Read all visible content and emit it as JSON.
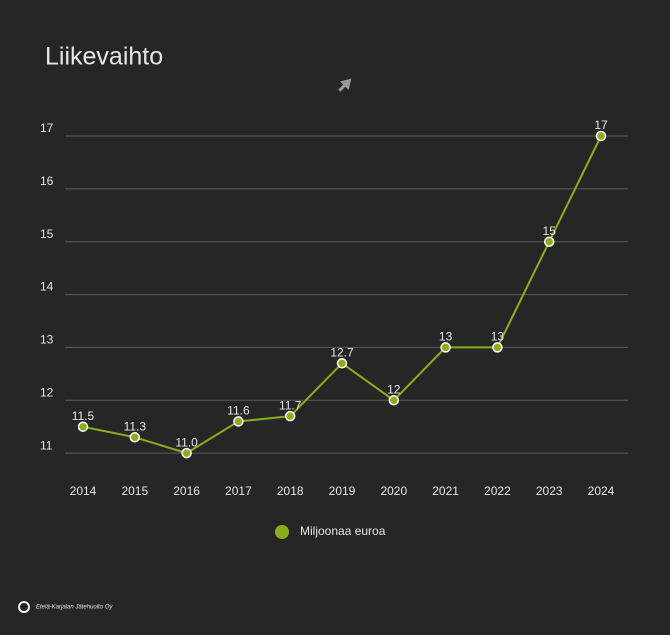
{
  "chart_data": {
    "type": "line",
    "title": "Liikevaihto",
    "categories": [
      "2014",
      "2015",
      "2016",
      "2017",
      "2018",
      "2019",
      "2020",
      "2021",
      "2022",
      "2023",
      "2024"
    ],
    "series": [
      {
        "name": "Miljoonaa euroa",
        "color": "#8aad1c",
        "values": [
          11.5,
          11.3,
          11.0,
          11.6,
          11.7,
          12.7,
          12,
          13,
          13,
          15,
          17
        ],
        "value_labels": [
          "11.5",
          "11.3",
          "11.0",
          "11.6",
          "11.7",
          "12.7",
          "12",
          "13",
          "13",
          "15",
          "17"
        ]
      }
    ],
    "ylim": [
      10.7,
      17
    ],
    "yticks": [
      11,
      12,
      13,
      14,
      15,
      16,
      17
    ],
    "grid": true,
    "legend": "bottom"
  },
  "logo_text": "Etelä-Karjalan Jätehuolto Oy"
}
